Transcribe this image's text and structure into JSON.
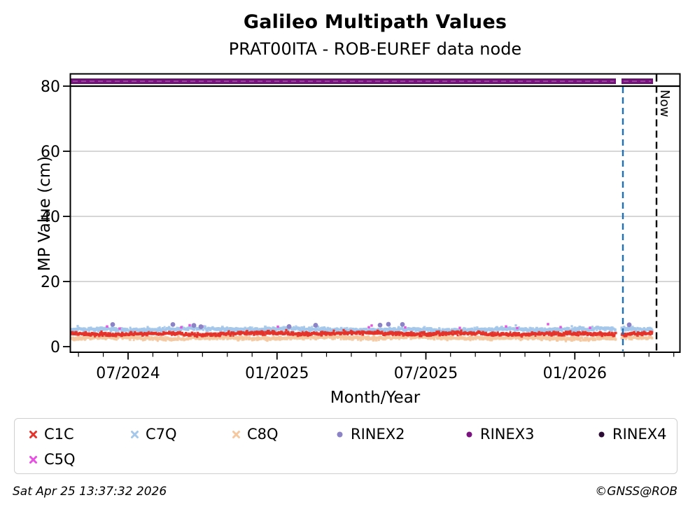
{
  "header": {
    "title": "Galileo Multipath Values",
    "subtitle": "PRAT00ITA - ROB-EUREF data node"
  },
  "chart_data": {
    "type": "scatter",
    "title": "Galileo Multipath Values",
    "subtitle": "PRAT00ITA - ROB-EUREF data node",
    "xlabel": "Month/Year",
    "ylabel": "MP Value (cm)",
    "xticks": [
      "07/2024",
      "01/2025",
      "07/2025",
      "01/2026"
    ],
    "yticks": [
      80,
      60,
      40,
      20,
      0
    ],
    "ylim": [
      0,
      84
    ],
    "x_span": "mid-April 2024 to early-May 2026, minor ticks every month",
    "grid": {
      "horizontal_gray_at": [
        20,
        40,
        60
      ],
      "format_divider_at": 80
    },
    "series": [
      {
        "name": "C1C",
        "marker": "x",
        "color": "#e3332a",
        "band_mean_cm": 4.0,
        "band_halfwidth_cm": 0.55,
        "coverage": "dense continuous band Apr 2024 - mid Apr 2026, short gap early Mar 2026"
      },
      {
        "name": "C7Q",
        "marker": "x",
        "color": "#a4c7ea",
        "band_mean_cm": 5.3,
        "band_halfwidth_cm": 0.6,
        "coverage": "dense continuous band"
      },
      {
        "name": "C8Q",
        "marker": "x",
        "color": "#f5c8a0",
        "band_mean_cm": 2.7,
        "band_halfwidth_cm": 0.6,
        "coverage": "dense continuous band"
      },
      {
        "name": "C5Q",
        "marker": "x",
        "color": "#e84fe3",
        "band_mean_cm": 6.0,
        "band_halfwidth_cm": 0.7,
        "coverage": "sparse specks above C7Q band"
      },
      {
        "name": "RINEX2",
        "marker": "o",
        "color": "#8b83c5",
        "band_mean_cm": 6.3,
        "band_halfwidth_cm": 0.4,
        "coverage": "rare isolated dots"
      },
      {
        "name": "RINEX3",
        "marker": "o",
        "color": "#7a137f",
        "band_mean_cm": 81.5,
        "band_halfwidth_cm": 0.7,
        "coverage": "continuous thick indicator line Apr 2024 - mid Apr 2026, gap early Mar 2026"
      },
      {
        "name": "RINEX4",
        "marker": "o",
        "color": "#2b0b33",
        "band_mean_cm": null,
        "coverage": "no data visible"
      }
    ],
    "annotations": {
      "now_label": "Now",
      "now_line": {
        "style": "dashed",
        "color": "#000000",
        "x": "mid-April 2026"
      },
      "latest_data_line": {
        "style": "dashed",
        "color": "#1f6fb6",
        "x": "early-March 2026"
      }
    }
  },
  "legend": {
    "items": [
      {
        "label": "C1C",
        "marker": "x",
        "color": "#e3332a"
      },
      {
        "label": "C7Q",
        "marker": "x",
        "color": "#a4c7ea"
      },
      {
        "label": "C8Q",
        "marker": "x",
        "color": "#f5c8a0"
      },
      {
        "label": "RINEX2",
        "marker": "o",
        "color": "#8b83c5"
      },
      {
        "label": "RINEX3",
        "marker": "o",
        "color": "#7a137f"
      },
      {
        "label": "RINEX4",
        "marker": "o",
        "color": "#2b0b33"
      },
      {
        "label": "C5Q",
        "marker": "x",
        "color": "#e84fe3"
      }
    ]
  },
  "footer": {
    "timestamp": "Sat Apr 25 13:37:32 2026",
    "credit": "©GNSS@ROB"
  }
}
